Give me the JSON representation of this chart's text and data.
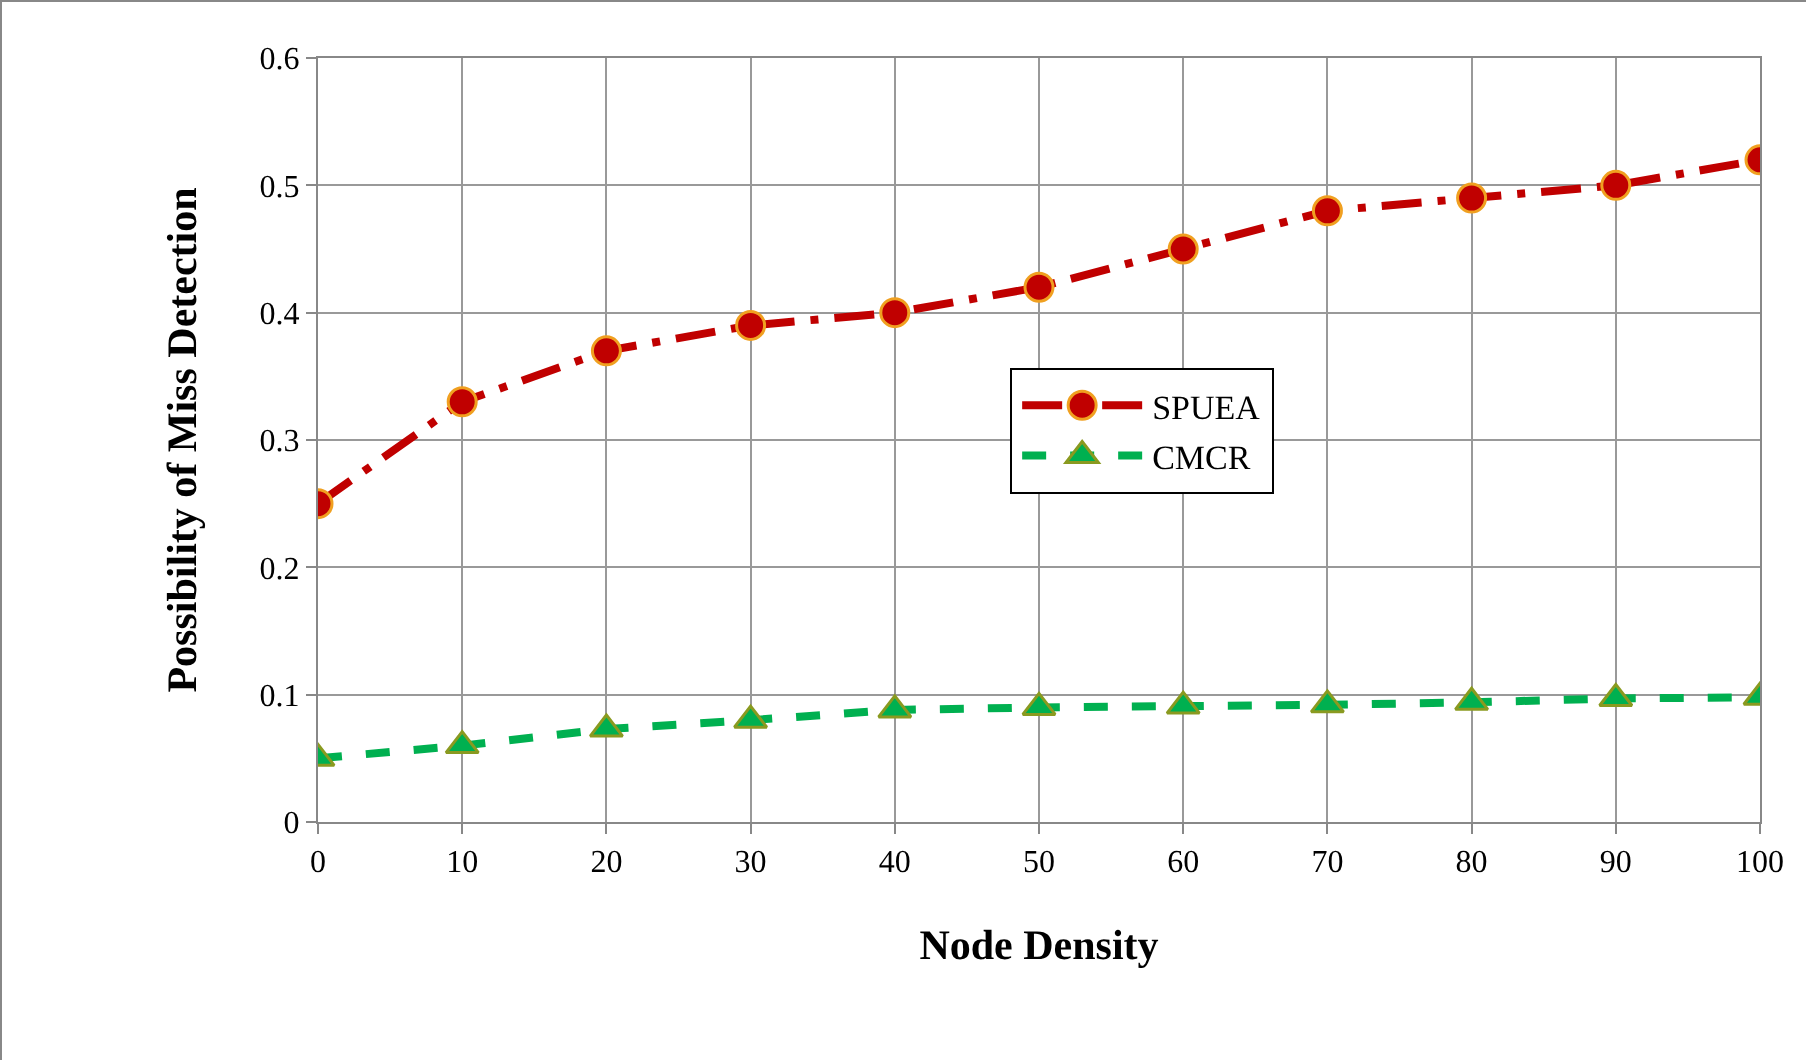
{
  "chart_data": {
    "type": "line",
    "xlabel": "Node Density",
    "ylabel": "Possibility of Miss Detection",
    "x": [
      0,
      10,
      20,
      30,
      40,
      50,
      60,
      70,
      80,
      90,
      100
    ],
    "series": [
      {
        "name": "SPUEA",
        "color": "#c00000",
        "marker": "circle",
        "line_style": "dashdot",
        "values": [
          0.25,
          0.33,
          0.37,
          0.39,
          0.4,
          0.42,
          0.45,
          0.48,
          0.49,
          0.5,
          0.52
        ]
      },
      {
        "name": "CMCR",
        "color": "#00b050",
        "marker": "triangle",
        "line_style": "dashed",
        "values": [
          0.05,
          0.06,
          0.073,
          0.08,
          0.088,
          0.09,
          0.091,
          0.092,
          0.094,
          0.097,
          0.098
        ]
      }
    ],
    "xlim": [
      0,
      100
    ],
    "xticks": [
      0,
      10,
      20,
      30,
      40,
      50,
      60,
      70,
      80,
      90,
      100
    ],
    "ylim": [
      0,
      0.6
    ],
    "yticks": [
      0,
      0.1,
      0.2,
      0.3,
      0.4,
      0.5,
      0.6
    ],
    "grid": true,
    "legend": "right"
  }
}
